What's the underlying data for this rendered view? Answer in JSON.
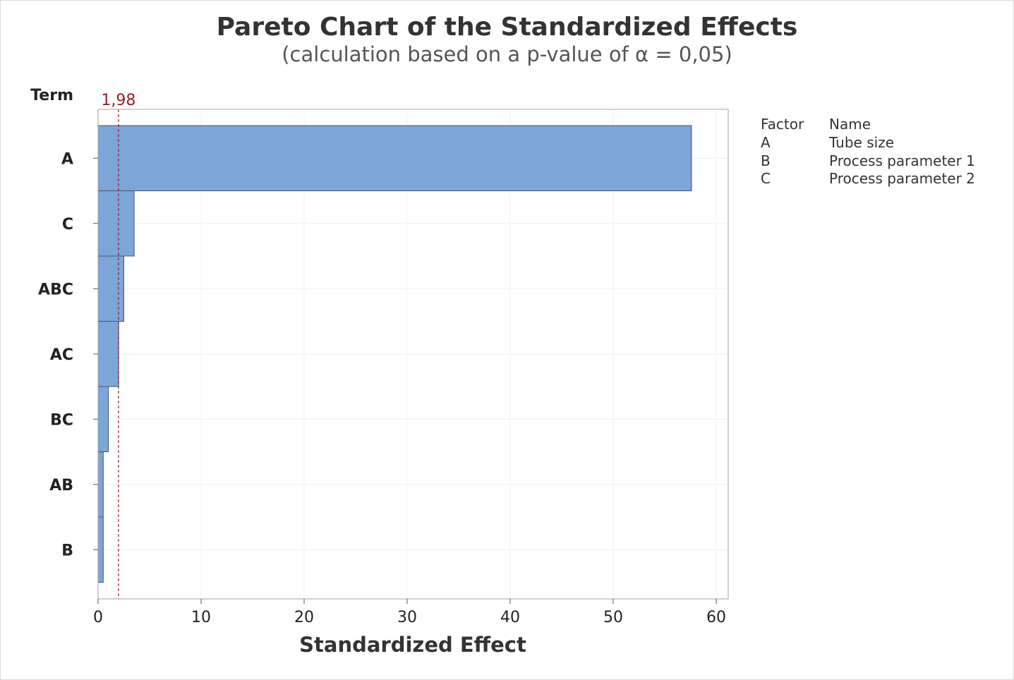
{
  "title": "Pareto Chart of the Standardized Effects",
  "subtitle": "(calculation based on a p-value of α = 0,05)",
  "colors": {
    "bar_fill": "#7da6d8",
    "bar_stroke": "#44546a",
    "reference_line": "#9b1c24",
    "grid": "#f0f0f0",
    "plot_border": "#a0a0a0",
    "text": "#333333"
  },
  "chart_data": {
    "type": "bar",
    "orientation": "horizontal",
    "categories": [
      "A",
      "C",
      "ABC",
      "AC",
      "BC",
      "AB",
      "B"
    ],
    "values": [
      57.6,
      3.5,
      2.5,
      2.0,
      1.0,
      0.5,
      0.5
    ],
    "xlabel": "Standardized Effect",
    "ylabel": "Term",
    "xlim": [
      0,
      61
    ],
    "xticks": [
      0,
      10,
      20,
      30,
      40,
      50,
      60
    ],
    "xtick_labels": [
      "0",
      "10",
      "20",
      "30",
      "40",
      "50",
      "60"
    ],
    "grid": true,
    "reference_line": {
      "value": 1.98,
      "label": "1,98",
      "style": "dashed"
    }
  },
  "legend": {
    "header": {
      "factor": "Factor",
      "name": "Name"
    },
    "rows": [
      {
        "factor": "A",
        "name": "Tube size"
      },
      {
        "factor": "B",
        "name": "Process parameter 1"
      },
      {
        "factor": "C",
        "name": "Process parameter 2"
      }
    ]
  }
}
